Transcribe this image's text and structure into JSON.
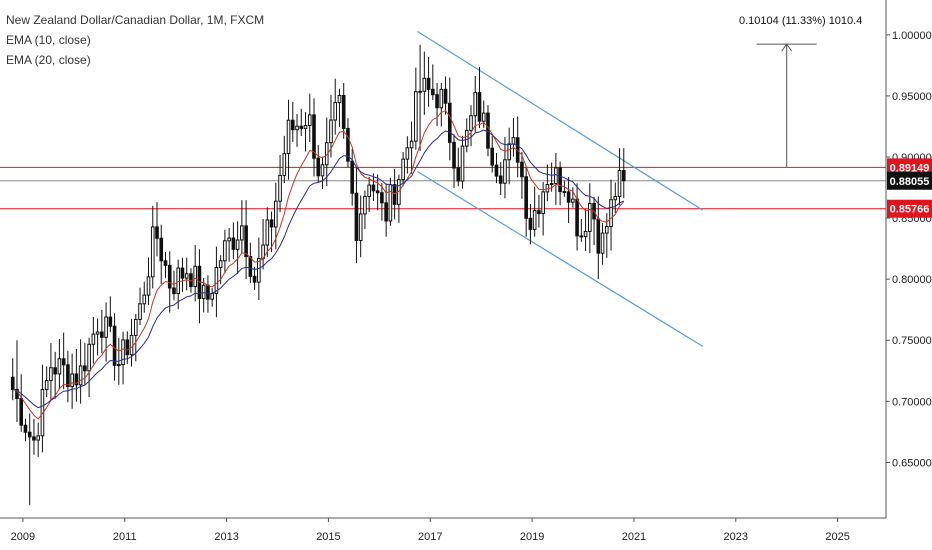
{
  "header": {
    "symbol_line": "New Zealand Dollar/Canadian Dollar, 1M, FXCM",
    "indicator_1": "EMA (10, close)",
    "indicator_2": "EMA (20, close)"
  },
  "measurement_label": "0.10104 (11.33%) 1010.4",
  "colors": {
    "candle": "#111111",
    "ema10": "#c0392b",
    "ema20": "#2c2c8a",
    "channel": "#5b9bd5",
    "level_line": "#e0141e",
    "price_line": "#888888",
    "axis_text": "#222222"
  },
  "chart_data": {
    "type": "candlestick",
    "x_axis": {
      "ticks": [
        "2009",
        "2011",
        "2013",
        "2015",
        "2017",
        "2019",
        "2021",
        "2023",
        "2025"
      ],
      "range": [
        2008.55,
        2025.95
      ]
    },
    "y_axis": {
      "ticks": [
        "1.00000",
        "0.95000",
        "0.90000",
        "0.85000",
        "0.80000",
        "0.75000",
        "0.70000",
        "0.65000"
      ],
      "range": [
        0.6045,
        1.0285
      ]
    },
    "price_labels": [
      {
        "text": "0.89149",
        "value": 0.89149,
        "style": "red"
      },
      {
        "text": "0.88055",
        "value": 0.88055,
        "style": "black"
      },
      {
        "text": "0.85766",
        "value": 0.85766,
        "style": "red"
      }
    ],
    "horizontal_levels": [
      0.89149,
      0.85766
    ],
    "last_price": 0.88055,
    "channel": {
      "upper": [
        [
          2016.75,
          1.0027
        ],
        [
          2022.35,
          0.8565
        ]
      ],
      "lower": [
        [
          2016.75,
          0.888
        ],
        [
          2022.35,
          0.745
        ]
      ]
    },
    "measure_arrow": {
      "x": 2024.0,
      "from": 0.8914,
      "to": 0.9924
    },
    "anchors": [
      [
        2008.8,
        0.71
      ],
      [
        2009.2,
        0.665
      ],
      [
        2009.55,
        0.73
      ],
      [
        2010.1,
        0.72
      ],
      [
        2010.5,
        0.77
      ],
      [
        2010.9,
        0.73
      ],
      [
        2011.3,
        0.775
      ],
      [
        2011.6,
        0.84
      ],
      [
        2011.9,
        0.795
      ],
      [
        2012.25,
        0.81
      ],
      [
        2012.6,
        0.78
      ],
      [
        2012.9,
        0.82
      ],
      [
        2013.3,
        0.845
      ],
      [
        2013.55,
        0.8
      ],
      [
        2013.9,
        0.85
      ],
      [
        2014.2,
        0.92
      ],
      [
        2014.6,
        0.935
      ],
      [
        2014.85,
        0.88
      ],
      [
        2015.2,
        0.945
      ],
      [
        2015.55,
        0.845
      ],
      [
        2015.8,
        0.885
      ],
      [
        2016.1,
        0.85
      ],
      [
        2016.5,
        0.9
      ],
      [
        2016.8,
        0.955
      ],
      [
        2017.2,
        0.95
      ],
      [
        2017.55,
        0.89
      ],
      [
        2017.9,
        0.945
      ],
      [
        2018.35,
        0.89
      ],
      [
        2018.7,
        0.91
      ],
      [
        2018.95,
        0.845
      ],
      [
        2019.3,
        0.885
      ],
      [
        2019.7,
        0.88
      ],
      [
        2019.95,
        0.835
      ],
      [
        2020.15,
        0.865
      ],
      [
        2020.35,
        0.825
      ],
      [
        2020.65,
        0.875
      ],
      [
        2020.85,
        0.8806
      ]
    ],
    "wicks": [
      [
        2008.85,
        0.683,
        0.75
      ],
      [
        2009.15,
        0.615,
        0.69
      ],
      [
        2016.8,
        0.905,
        0.992
      ],
      [
        2020.3,
        0.8,
        0.845
      ],
      [
        2020.7,
        0.875,
        0.9
      ]
    ]
  }
}
